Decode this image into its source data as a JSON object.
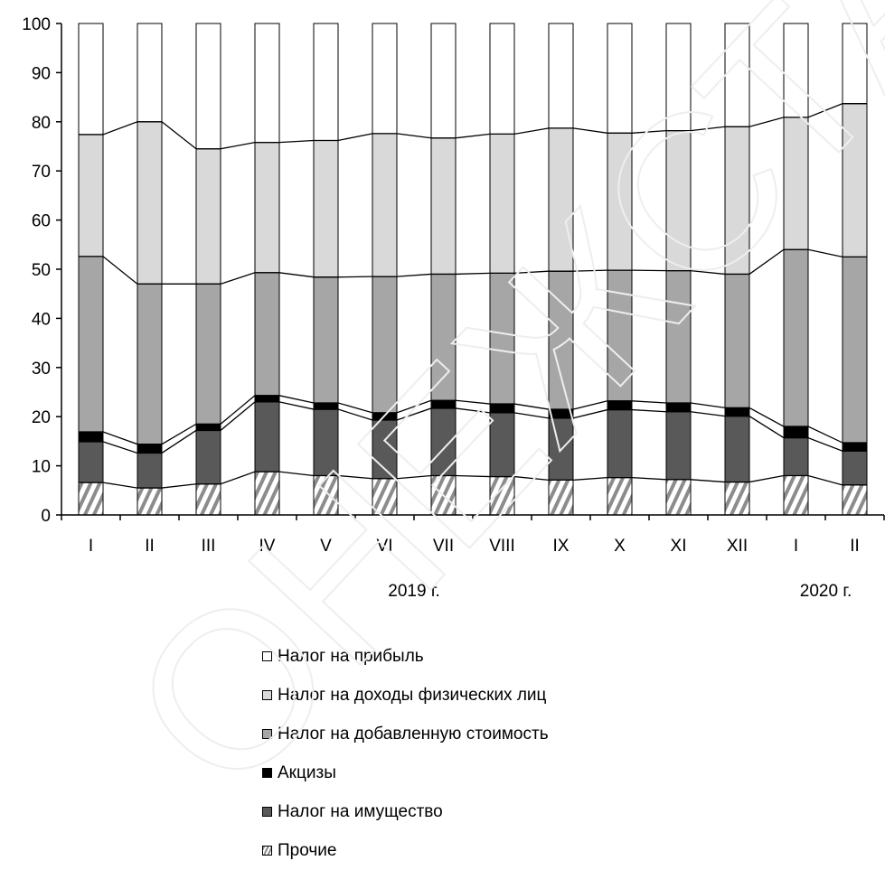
{
  "chart_data": {
    "type": "bar",
    "stacked": true,
    "categories": [
      "I",
      "II",
      "III",
      "IV",
      "V",
      "VI",
      "VII",
      "VIII",
      "IX",
      "X",
      "XI",
      "XII",
      "I",
      "II"
    ],
    "year_labels": [
      {
        "text": "2019 г.",
        "after_category_index": 5
      },
      {
        "text": "2020 г.",
        "after_category_index": 13
      }
    ],
    "ylim": [
      0,
      100
    ],
    "yticks": [
      0,
      10,
      20,
      30,
      40,
      50,
      60,
      70,
      80,
      90,
      100
    ],
    "series": [
      {
        "name": "Прочие",
        "color": "#ffffff",
        "pattern": "diagonal-hatch",
        "values": [
          6.6,
          5.5,
          6.3,
          8.8,
          8.0,
          7.4,
          8.0,
          7.8,
          7.1,
          7.6,
          7.2,
          6.7,
          8.0,
          6.1
        ]
      },
      {
        "name": "Налог на имущество",
        "color": "#595959",
        "values": [
          8.3,
          7.1,
          10.9,
          14.2,
          13.5,
          11.9,
          13.7,
          13.0,
          12.6,
          13.8,
          13.8,
          13.4,
          7.7,
          6.9
        ]
      },
      {
        "name": "Акцизы",
        "color": "#000000",
        "values": [
          2.0,
          1.8,
          1.3,
          1.3,
          1.3,
          1.5,
          1.6,
          1.8,
          1.8,
          1.8,
          1.8,
          1.7,
          2.3,
          1.7
        ]
      },
      {
        "name": "Налог на добавленную стоимость",
        "color": "#a6a6a6",
        "values": [
          35.7,
          32.6,
          28.5,
          25.0,
          25.6,
          27.7,
          25.7,
          26.6,
          28.1,
          26.6,
          26.9,
          27.2,
          36.0,
          37.8
        ]
      },
      {
        "name": "Налог на доходы физических лиц",
        "color": "#d9d9d9",
        "values": [
          24.8,
          33.0,
          27.5,
          26.5,
          27.8,
          29.1,
          27.7,
          28.3,
          29.1,
          27.9,
          28.5,
          30.0,
          26.9,
          31.2
        ]
      },
      {
        "name": "Налог на прибыль",
        "color": "#ffffff",
        "values": [
          22.6,
          20.0,
          25.5,
          24.2,
          23.8,
          22.4,
          23.3,
          22.5,
          21.3,
          22.3,
          21.8,
          21.0,
          19.1,
          16.3
        ]
      }
    ],
    "legend_order": [
      "Налог на прибыль",
      "Налог на доходы физических лиц",
      "Налог на добавленную стоимость",
      "Акцизы",
      "Налог на имущество",
      "Прочие"
    ],
    "grid": false,
    "legend_position": "bottom",
    "watermark": "ОНЕЖСТАТ"
  }
}
